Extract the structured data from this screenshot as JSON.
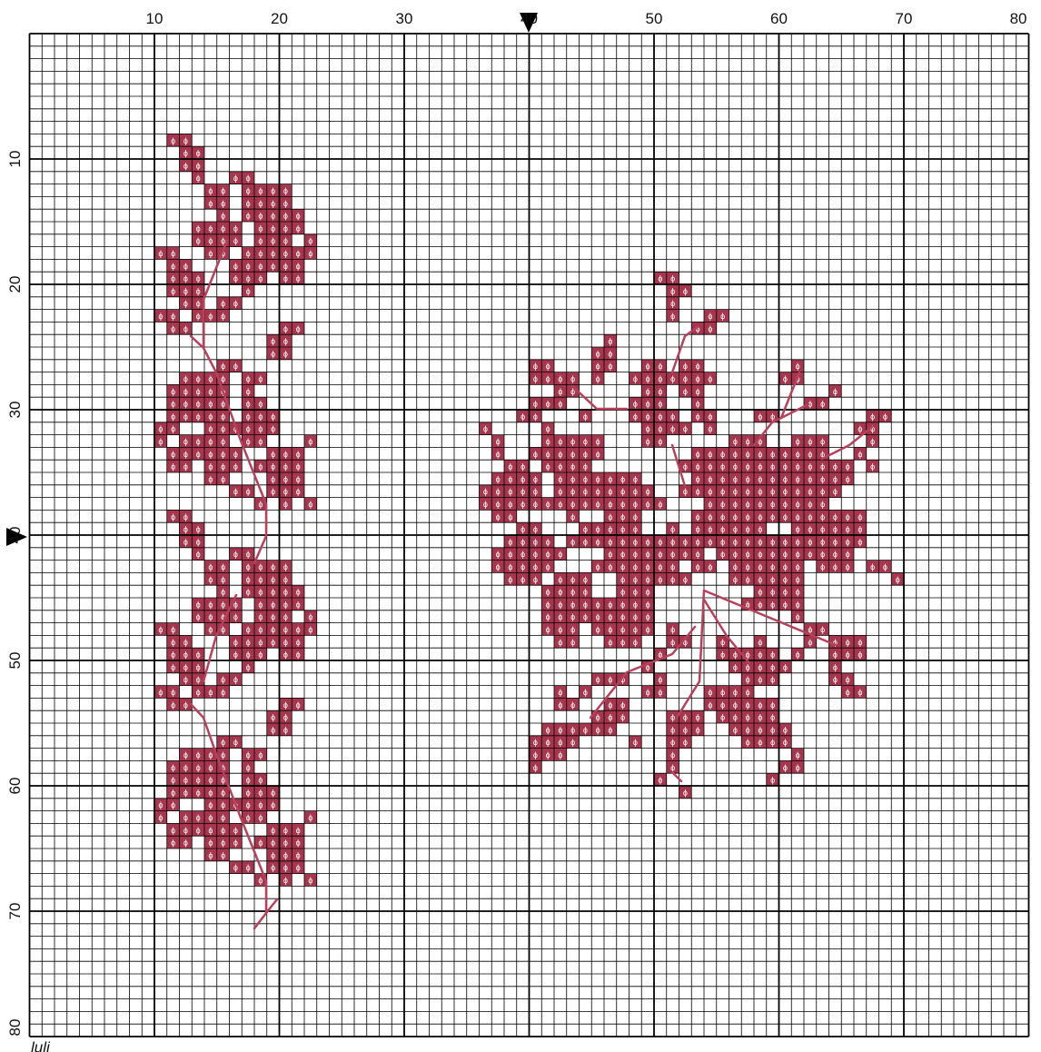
{
  "column_labels": [
    "10",
    "20",
    "30",
    "40",
    "50",
    "60",
    "70",
    "80"
  ],
  "row_labels": [
    "10",
    "20",
    "30",
    "40",
    "50",
    "60",
    "70",
    "80"
  ],
  "symbol": "ϕ",
  "signature": "luli",
  "stitches": [
    {
      "row": 8,
      "runs": [
        [
          11,
          12
        ]
      ]
    },
    {
      "row": 9,
      "runs": [
        [
          12,
          13
        ]
      ]
    },
    {
      "row": 10,
      "runs": [
        [
          12,
          13
        ]
      ]
    },
    {
      "row": 11,
      "runs": [
        [
          13,
          13
        ],
        [
          16,
          17
        ]
      ]
    },
    {
      "row": 12,
      "runs": [
        [
          14,
          15
        ],
        [
          17,
          20
        ]
      ]
    },
    {
      "row": 13,
      "runs": [
        [
          14,
          15
        ],
        [
          17,
          20
        ]
      ]
    },
    {
      "row": 14,
      "runs": [
        [
          15,
          15
        ],
        [
          17,
          21
        ]
      ]
    },
    {
      "row": 15,
      "runs": [
        [
          13,
          16
        ],
        [
          18,
          21
        ]
      ]
    },
    {
      "row": 16,
      "runs": [
        [
          13,
          16
        ],
        [
          18,
          20
        ],
        [
          22,
          22
        ]
      ]
    },
    {
      "row": 17,
      "runs": [
        [
          10,
          11
        ],
        [
          14,
          15
        ],
        [
          17,
          22
        ]
      ]
    },
    {
      "row": 18,
      "runs": [
        [
          11,
          12
        ],
        [
          16,
          21
        ]
      ]
    },
    {
      "row": 19,
      "runs": [
        [
          11,
          13
        ],
        [
          16,
          18
        ],
        [
          20,
          21
        ]
      ]
    },
    {
      "row": 20,
      "runs": [
        [
          11,
          13
        ],
        [
          17,
          17
        ]
      ]
    },
    {
      "row": 21,
      "runs": [
        [
          12,
          13
        ],
        [
          15,
          16
        ]
      ]
    },
    {
      "row": 22,
      "runs": [
        [
          10,
          11
        ],
        [
          13,
          15
        ]
      ]
    },
    {
      "row": 23,
      "runs": [
        [
          11,
          12
        ],
        [
          20,
          21
        ]
      ]
    },
    {
      "row": 24,
      "runs": [
        [
          19,
          20
        ]
      ]
    },
    {
      "row": 25,
      "runs": [
        [
          19,
          20
        ]
      ]
    },
    {
      "row": 26,
      "runs": [
        [
          15,
          16
        ]
      ]
    },
    {
      "row": 27,
      "runs": [
        [
          12,
          15
        ],
        [
          17,
          18
        ]
      ]
    },
    {
      "row": 28,
      "runs": [
        [
          11,
          15
        ],
        [
          17,
          17
        ]
      ]
    },
    {
      "row": 29,
      "runs": [
        [
          11,
          15
        ],
        [
          17,
          18
        ]
      ]
    },
    {
      "row": 30,
      "runs": [
        [
          11,
          15
        ],
        [
          17,
          19
        ]
      ]
    },
    {
      "row": 31,
      "runs": [
        [
          10,
          11
        ],
        [
          14,
          19
        ]
      ]
    },
    {
      "row": 32,
      "runs": [
        [
          10,
          10
        ],
        [
          12,
          15
        ],
        [
          17,
          18
        ],
        [
          22,
          22
        ]
      ]
    },
    {
      "row": 33,
      "runs": [
        [
          11,
          16
        ],
        [
          19,
          21
        ]
      ]
    },
    {
      "row": 34,
      "runs": [
        [
          11,
          12
        ],
        [
          14,
          16
        ],
        [
          18,
          21
        ]
      ]
    },
    {
      "row": 35,
      "runs": [
        [
          14,
          15
        ],
        [
          19,
          21
        ]
      ]
    },
    {
      "row": 36,
      "runs": [
        [
          16,
          17
        ],
        [
          19,
          21
        ]
      ]
    },
    {
      "row": 37,
      "runs": [
        [
          18,
          18
        ],
        [
          20,
          20
        ],
        [
          22,
          22
        ]
      ]
    },
    {
      "row": 38,
      "runs": [
        [
          11,
          12
        ]
      ]
    },
    {
      "row": 39,
      "runs": [
        [
          12,
          13
        ]
      ]
    },
    {
      "row": 40,
      "runs": [
        [
          12,
          13
        ]
      ]
    },
    {
      "row": 41,
      "runs": [
        [
          13,
          13
        ],
        [
          16,
          17
        ]
      ]
    },
    {
      "row": 42,
      "runs": [
        [
          14,
          15
        ],
        [
          17,
          20
        ]
      ]
    },
    {
      "row": 43,
      "runs": [
        [
          14,
          15
        ],
        [
          17,
          20
        ]
      ]
    },
    {
      "row": 44,
      "runs": [
        [
          15,
          15
        ],
        [
          17,
          21
        ]
      ]
    },
    {
      "row": 45,
      "runs": [
        [
          13,
          16
        ],
        [
          18,
          21
        ]
      ]
    },
    {
      "row": 46,
      "runs": [
        [
          13,
          16
        ],
        [
          18,
          20
        ],
        [
          22,
          22
        ]
      ]
    },
    {
      "row": 47,
      "runs": [
        [
          10,
          11
        ],
        [
          14,
          15
        ],
        [
          17,
          22
        ]
      ]
    },
    {
      "row": 48,
      "runs": [
        [
          11,
          12
        ],
        [
          16,
          21
        ]
      ]
    },
    {
      "row": 49,
      "runs": [
        [
          11,
          13
        ],
        [
          16,
          18
        ],
        [
          20,
          21
        ]
      ]
    },
    {
      "row": 50,
      "runs": [
        [
          11,
          13
        ],
        [
          17,
          17
        ]
      ]
    },
    {
      "row": 51,
      "runs": [
        [
          12,
          13
        ],
        [
          15,
          16
        ]
      ]
    },
    {
      "row": 52,
      "runs": [
        [
          10,
          11
        ],
        [
          13,
          15
        ]
      ]
    },
    {
      "row": 53,
      "runs": [
        [
          11,
          12
        ],
        [
          20,
          21
        ]
      ]
    },
    {
      "row": 54,
      "runs": [
        [
          19,
          20
        ]
      ]
    },
    {
      "row": 55,
      "runs": [
        [
          19,
          20
        ]
      ]
    },
    {
      "row": 56,
      "runs": [
        [
          15,
          16
        ]
      ]
    },
    {
      "row": 57,
      "runs": [
        [
          12,
          15
        ],
        [
          17,
          18
        ]
      ]
    },
    {
      "row": 58,
      "runs": [
        [
          11,
          15
        ],
        [
          17,
          17
        ]
      ]
    },
    {
      "row": 59,
      "runs": [
        [
          11,
          15
        ],
        [
          17,
          18
        ]
      ]
    },
    {
      "row": 60,
      "runs": [
        [
          11,
          15
        ],
        [
          17,
          19
        ]
      ]
    },
    {
      "row": 61,
      "runs": [
        [
          10,
          11
        ],
        [
          14,
          19
        ]
      ]
    },
    {
      "row": 62,
      "runs": [
        [
          10,
          10
        ],
        [
          12,
          15
        ],
        [
          17,
          18
        ],
        [
          22,
          22
        ]
      ]
    },
    {
      "row": 63,
      "runs": [
        [
          11,
          16
        ],
        [
          19,
          21
        ]
      ]
    },
    {
      "row": 64,
      "runs": [
        [
          11,
          12
        ],
        [
          14,
          16
        ],
        [
          18,
          21
        ]
      ]
    },
    {
      "row": 65,
      "runs": [
        [
          14,
          15
        ],
        [
          19,
          21
        ]
      ]
    },
    {
      "row": 66,
      "runs": [
        [
          16,
          17
        ],
        [
          19,
          21
        ]
      ]
    },
    {
      "row": 67,
      "runs": [
        [
          18,
          18
        ],
        [
          20,
          20
        ],
        [
          22,
          22
        ]
      ]
    },
    {
      "row": 19,
      "runs": [
        [
          50,
          51
        ]
      ]
    },
    {
      "row": 20,
      "runs": [
        [
          51,
          52
        ]
      ]
    },
    {
      "row": 21,
      "runs": [
        [
          51,
          51
        ]
      ]
    },
    {
      "row": 22,
      "runs": [
        [
          51,
          51
        ],
        [
          54,
          55
        ]
      ]
    },
    {
      "row": 23,
      "runs": [
        [
          53,
          54
        ]
      ]
    },
    {
      "row": 24,
      "runs": [
        [
          46,
          46
        ]
      ]
    },
    {
      "row": 25,
      "runs": [
        [
          45,
          46
        ]
      ]
    },
    {
      "row": 26,
      "runs": [
        [
          40,
          41
        ],
        [
          45,
          46
        ],
        [
          49,
          50
        ],
        [
          52,
          53
        ],
        [
          61,
          61
        ]
      ]
    },
    {
      "row": 27,
      "runs": [
        [
          40,
          43
        ],
        [
          45,
          45
        ],
        [
          48,
          54
        ],
        [
          60,
          61
        ]
      ]
    },
    {
      "row": 28,
      "runs": [
        [
          42,
          43
        ],
        [
          49,
          50
        ],
        [
          52,
          53
        ],
        [
          64,
          64
        ]
      ]
    },
    {
      "row": 29,
      "runs": [
        [
          40,
          42
        ],
        [
          48,
          50
        ],
        [
          53,
          53
        ],
        [
          62,
          63
        ]
      ]
    },
    {
      "row": 30,
      "runs": [
        [
          39,
          40
        ],
        [
          44,
          44
        ],
        [
          48,
          51
        ],
        [
          53,
          54
        ],
        [
          58,
          59
        ],
        [
          67,
          68
        ]
      ]
    },
    {
      "row": 31,
      "runs": [
        [
          36,
          36
        ],
        [
          41,
          41
        ],
        [
          49,
          52
        ],
        [
          54,
          54
        ],
        [
          66,
          67
        ]
      ]
    },
    {
      "row": 32,
      "runs": [
        [
          37,
          37
        ],
        [
          41,
          45
        ],
        [
          49,
          50
        ],
        [
          56,
          58
        ],
        [
          61,
          63
        ],
        [
          67,
          67
        ]
      ]
    },
    {
      "row": 33,
      "runs": [
        [
          37,
          37
        ],
        [
          40,
          45
        ],
        [
          53,
          63
        ],
        [
          66,
          66
        ]
      ]
    },
    {
      "row": 34,
      "runs": [
        [
          38,
          39
        ],
        [
          41,
          44
        ],
        [
          52,
          65
        ],
        [
          67,
          67
        ]
      ]
    },
    {
      "row": 35,
      "runs": [
        [
          37,
          40
        ],
        [
          42,
          48
        ],
        [
          53,
          65
        ]
      ]
    },
    {
      "row": 36,
      "runs": [
        [
          36,
          40
        ],
        [
          42,
          49
        ],
        [
          52,
          64
        ]
      ]
    },
    {
      "row": 37,
      "runs": [
        [
          36,
          50
        ],
        [
          54,
          63
        ]
      ]
    },
    {
      "row": 38,
      "runs": [
        [
          37,
          38
        ],
        [
          43,
          43
        ],
        [
          46,
          48
        ],
        [
          53,
          66
        ]
      ]
    },
    {
      "row": 39,
      "runs": [
        [
          39,
          40
        ],
        [
          44,
          48
        ],
        [
          51,
          51
        ],
        [
          53,
          58
        ],
        [
          61,
          66
        ]
      ]
    },
    {
      "row": 40,
      "runs": [
        [
          38,
          41
        ],
        [
          43,
          66
        ]
      ]
    },
    {
      "row": 41,
      "runs": [
        [
          37,
          42
        ],
        [
          46,
          53
        ],
        [
          55,
          65
        ]
      ]
    },
    {
      "row": 42,
      "runs": [
        [
          37,
          41
        ],
        [
          45,
          51
        ],
        [
          53,
          54
        ],
        [
          56,
          61
        ],
        [
          63,
          65
        ],
        [
          67,
          68
        ]
      ]
    },
    {
      "row": 43,
      "runs": [
        [
          38,
          40
        ],
        [
          42,
          44
        ],
        [
          47,
          52
        ],
        [
          56,
          61
        ],
        [
          69,
          69
        ]
      ]
    },
    {
      "row": 44,
      "runs": [
        [
          41,
          44
        ],
        [
          47,
          49
        ],
        [
          58,
          61
        ]
      ]
    },
    {
      "row": 45,
      "runs": [
        [
          41,
          49
        ],
        [
          57,
          61
        ]
      ]
    },
    {
      "row": 46,
      "runs": [
        [
          41,
          49
        ],
        [
          61,
          61
        ]
      ]
    },
    {
      "row": 47,
      "runs": [
        [
          41,
          43
        ],
        [
          45,
          49
        ],
        [
          51,
          51
        ],
        [
          62,
          63
        ]
      ]
    },
    {
      "row": 48,
      "runs": [
        [
          42,
          43
        ],
        [
          46,
          48
        ],
        [
          51,
          52
        ],
        [
          55,
          55
        ],
        [
          58,
          58
        ],
        [
          62,
          62
        ],
        [
          64,
          66
        ]
      ]
    },
    {
      "row": 49,
      "runs": [
        [
          50,
          50
        ],
        [
          55,
          59
        ],
        [
          61,
          61
        ],
        [
          64,
          66
        ]
      ]
    },
    {
      "row": 50,
      "runs": [
        [
          49,
          49
        ],
        [
          56,
          60
        ],
        [
          64,
          64
        ]
      ]
    },
    {
      "row": 51,
      "runs": [
        [
          45,
          47
        ],
        [
          50,
          50
        ],
        [
          57,
          59
        ],
        [
          64,
          65
        ]
      ]
    },
    {
      "row": 52,
      "runs": [
        [
          42,
          42
        ],
        [
          44,
          44
        ],
        [
          49,
          50
        ],
        [
          54,
          57
        ],
        [
          65,
          66
        ]
      ]
    },
    {
      "row": 53,
      "runs": [
        [
          42,
          43
        ],
        [
          46,
          47
        ],
        [
          54,
          59
        ]
      ]
    },
    {
      "row": 54,
      "runs": [
        [
          45,
          47
        ],
        [
          51,
          53
        ],
        [
          55,
          59
        ]
      ]
    },
    {
      "row": 55,
      "runs": [
        [
          41,
          46
        ],
        [
          51,
          53
        ],
        [
          56,
          60
        ]
      ]
    },
    {
      "row": 56,
      "runs": [
        [
          40,
          43
        ],
        [
          48,
          48
        ],
        [
          51,
          52
        ],
        [
          57,
          60
        ]
      ]
    },
    {
      "row": 57,
      "runs": [
        [
          40,
          42
        ],
        [
          51,
          51
        ],
        [
          61,
          61
        ]
      ]
    },
    {
      "row": 58,
      "runs": [
        [
          40,
          40
        ],
        [
          51,
          51
        ],
        [
          60,
          61
        ]
      ]
    },
    {
      "row": 59,
      "runs": [
        [
          50,
          50
        ],
        [
          59,
          59
        ]
      ]
    },
    {
      "row": 60,
      "runs": [
        [
          52,
          52
        ]
      ]
    }
  ]
}
